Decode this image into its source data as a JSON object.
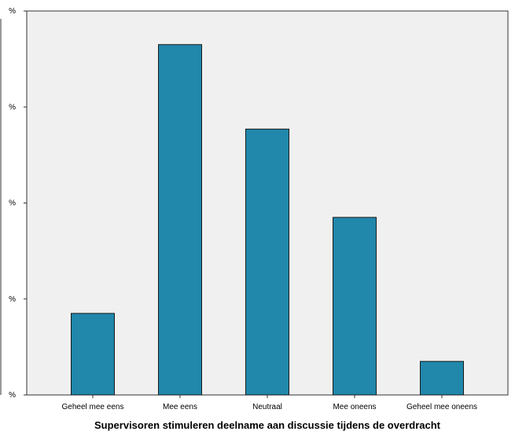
{
  "chart_data": {
    "type": "bar",
    "title": "",
    "xlabel": "Supervisoren stimuleren deelname aan discussie tijdens de overdracht",
    "ylabel": "",
    "categories": [
      "Geheel mee eens",
      "Mee eens",
      "Neutraal",
      "Mee oneens",
      "Geheel mee oneens"
    ],
    "values": [
      8.5,
      36.5,
      27.7,
      18.5,
      3.5
    ],
    "ylim": [
      0,
      40
    ],
    "y_ticks": [
      0,
      10,
      20,
      30,
      40
    ],
    "y_tick_labels": [
      "%",
      "%",
      "%",
      "%",
      "%"
    ],
    "grid": false,
    "legend": "none"
  },
  "colors": {
    "bar_fill": "#2187ab",
    "bar_stroke": "#1a1a1a",
    "plot_background": "#f0f0f0",
    "axis": "#333333"
  }
}
